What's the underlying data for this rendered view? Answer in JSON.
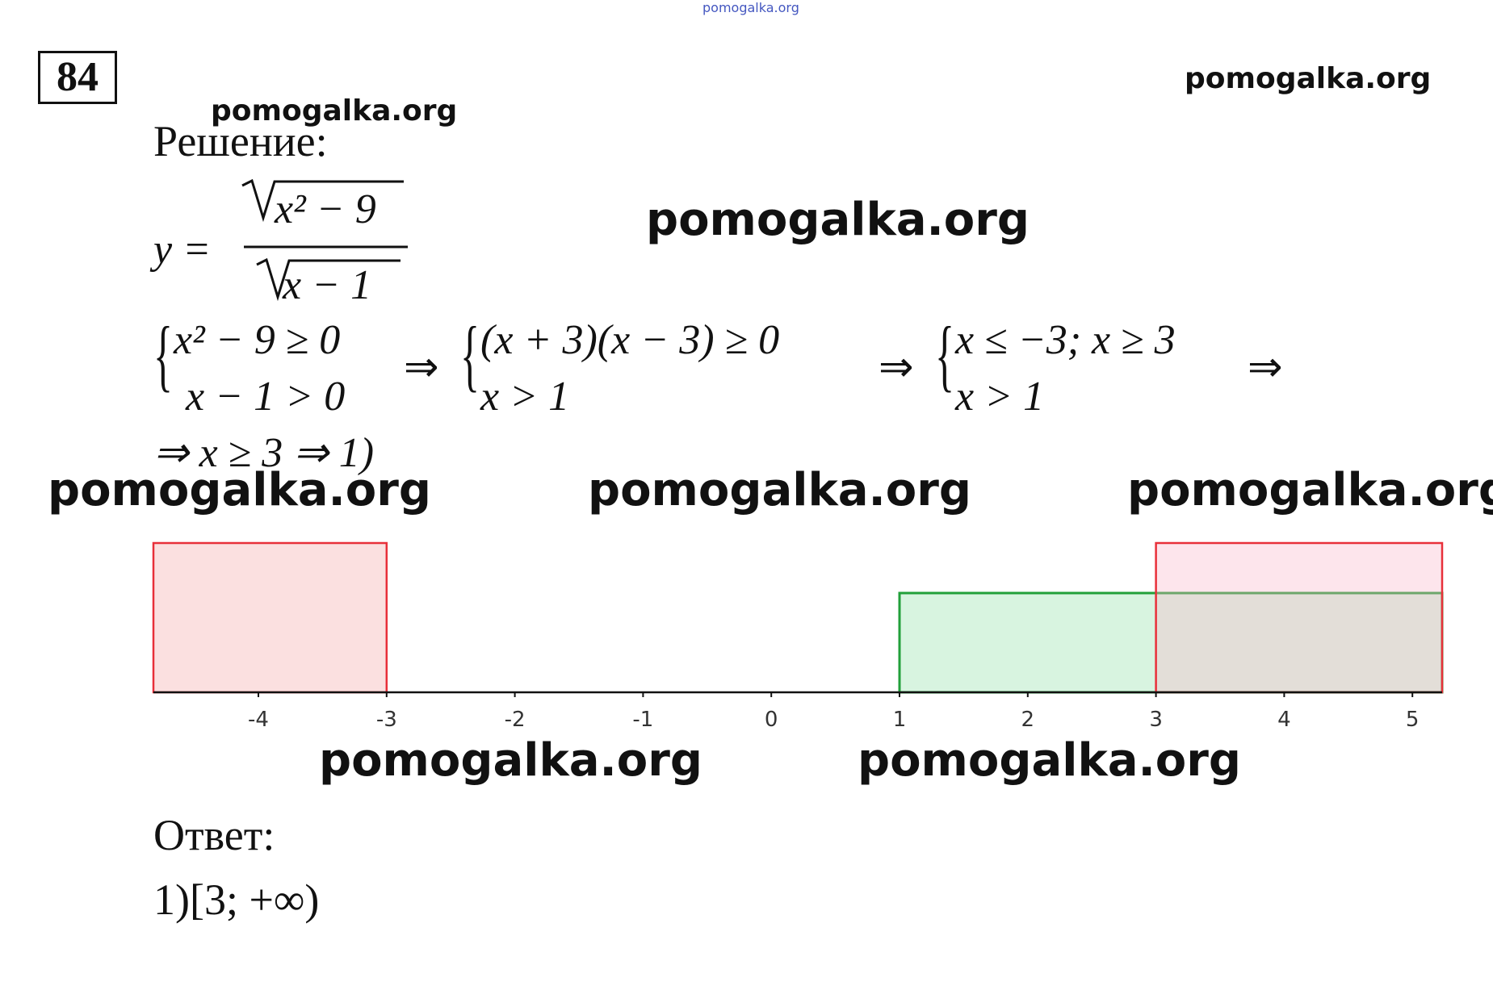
{
  "problem_number": "84",
  "heading": "Решение:",
  "formula": {
    "lhs": "y =",
    "numerator": "x² − 9",
    "denominator": "x − 1"
  },
  "systems": [
    {
      "lines": [
        "x² − 9 ≥ 0",
        "x − 1 > 0"
      ]
    },
    {
      "lines": [
        "(x + 3)(x − 3) ≥ 0",
        "x > 1"
      ]
    },
    {
      "lines": [
        "x ≤ −3; x ≥ 3",
        "x > 1"
      ]
    }
  ],
  "arrows": [
    "⇒",
    "⇒",
    "⇒"
  ],
  "conclusion": "⇒ x ≥ 3 ⇒ 1)",
  "number_line": {
    "ticks": [
      -4,
      -3,
      -2,
      -1,
      0,
      1,
      2,
      3,
      4,
      5
    ]
  },
  "answer_label": "Ответ:",
  "answer": "1)[3; +∞)",
  "watermarks": [
    "pomogalka.org",
    "pomogalka.org",
    "pomogalka.org",
    "pomogalka.org",
    "pomogalka.org",
    "pomogalka.org",
    "pomogalka.org",
    "pomogalka.org",
    "pomogalka.org"
  ]
}
